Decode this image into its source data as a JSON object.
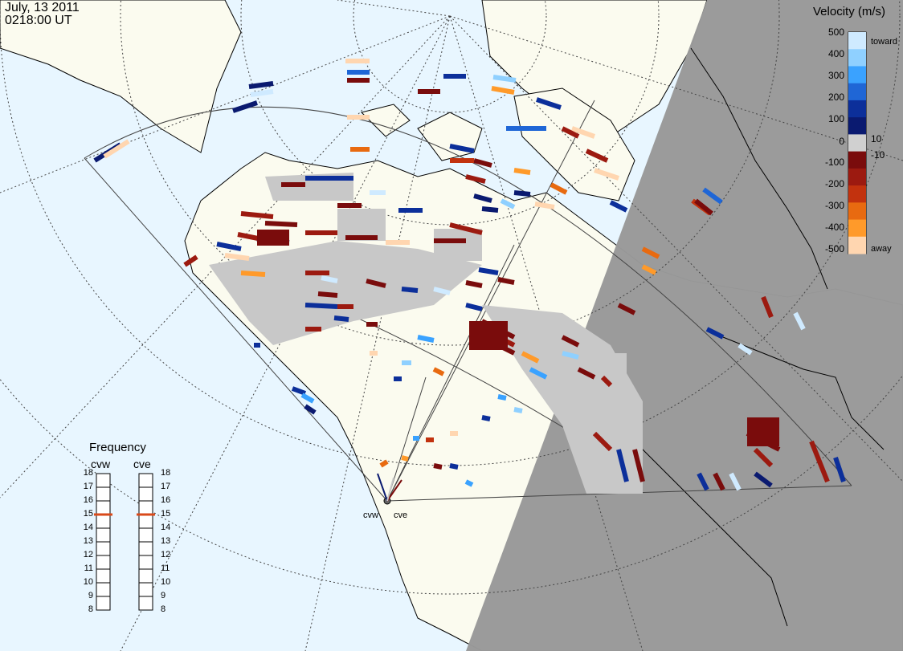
{
  "header": {
    "date": "July, 13 2011",
    "time": "0218:00 UT"
  },
  "colorbar": {
    "title": "Velocity (m/s)",
    "ticks": [
      "500",
      "400",
      "300",
      "200",
      "100",
      "10",
      "0",
      "-10",
      "-100",
      "-200",
      "-300",
      "-400",
      "-500"
    ],
    "toward_label": "toward",
    "away_label": "away",
    "colors": [
      "#cfeaff",
      "#8fd0ff",
      "#3aa2ff",
      "#1f66d6",
      "#0c2f9a",
      "#0a1a70",
      "#d0d0d0",
      "#7a0c0c",
      "#9c1a10",
      "#c2320e",
      "#e86a10",
      "#ff9a2a",
      "#ffd6b0"
    ]
  },
  "frequency": {
    "title": "Frequency",
    "left_radar": "cvw",
    "right_radar": "cve",
    "ticks": [
      "18",
      "17",
      "16",
      "15",
      "14",
      "13",
      "12",
      "11",
      "10",
      "9",
      "8"
    ],
    "left_value_mhz": 15,
    "right_value_mhz": 15,
    "marker_color": "#d94a1a"
  },
  "radars": {
    "west": "cvw",
    "east": "cve"
  },
  "map_colors": {
    "ocean": "#e8f6ff",
    "land": "#fbfbef",
    "night": "#999999",
    "ground_scatter": "#c8c8c8"
  }
}
